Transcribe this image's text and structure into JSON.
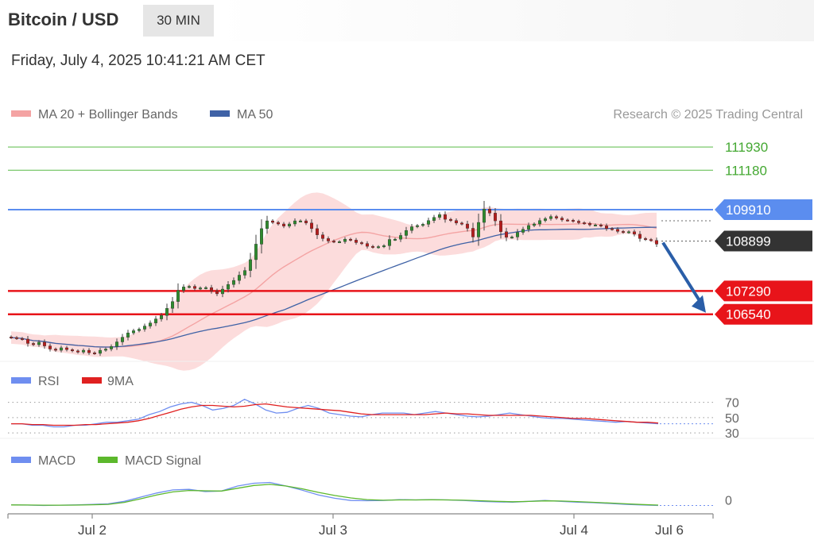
{
  "header": {
    "title": "Bitcoin / USD",
    "timeframe": "30 MIN"
  },
  "date_text": "Friday, July 4, 2025 10:41:21 AM CET",
  "credit": "Research © 2025 Trading Central",
  "colors": {
    "resistance": "#7bc86c",
    "pivot": "#5b8def",
    "support": "#e8141a",
    "price_tag": "#333333",
    "arrow": "#2a5ea8",
    "ma20": "#f4a3a3",
    "ma50": "#3f62a6",
    "band": "#fbd0d0",
    "rsi": "#6f8ef0",
    "rsi9ma": "#e02020",
    "macd": "#6f8ef0",
    "macd_signal": "#5cb82c"
  },
  "chart_data": [
    {
      "type": "candlestick",
      "legend": [
        {
          "name": "MA 20 + Bollinger Bands",
          "color": "#f4a3a3"
        },
        {
          "name": "MA 50",
          "color": "#3f62a6"
        }
      ],
      "xaxis_ticks": [
        "Jul 2",
        "Jul 3",
        "Jul 4",
        "Jul 6"
      ],
      "last_price": 108899,
      "levels": [
        {
          "value": 111930,
          "kind": "resistance"
        },
        {
          "value": 111180,
          "kind": "resistance"
        },
        {
          "value": 109910,
          "kind": "pivot"
        },
        {
          "value": 107290,
          "kind": "support"
        },
        {
          "value": 106540,
          "kind": "support"
        }
      ],
      "forecast": {
        "direction": "down",
        "target": 106540
      },
      "ylim": [
        105100,
        112700
      ],
      "close": [
        105790,
        105760,
        105740,
        105600,
        105560,
        105640,
        105520,
        105420,
        105380,
        105460,
        105400,
        105360,
        105320,
        105380,
        105300,
        105280,
        105380,
        105420,
        105500,
        105650,
        105800,
        105940,
        106010,
        106060,
        106160,
        106260,
        106390,
        106500,
        106730,
        106950,
        107310,
        107420,
        107440,
        107370,
        107390,
        107400,
        107290,
        107200,
        107350,
        107500,
        107630,
        107800,
        107950,
        108300,
        108800,
        109300,
        109550,
        109500,
        109450,
        109380,
        109450,
        109550,
        109550,
        109480,
        109300,
        109100,
        108980,
        108900,
        108880,
        108880,
        108960,
        108930,
        108850,
        108820,
        108730,
        108700,
        108720,
        108750,
        108950,
        108960,
        109080,
        109240,
        109360,
        109400,
        109440,
        109560,
        109660,
        109750,
        109600,
        109560,
        109480,
        109450,
        109310,
        109030,
        109500,
        109930,
        109800,
        109550,
        109200,
        109020,
        109030,
        109180,
        109280,
        109400,
        109450,
        109560,
        109620,
        109690,
        109640,
        109580,
        109570,
        109540,
        109490,
        109470,
        109420,
        109420,
        109390,
        109300,
        109280,
        109210,
        109180,
        109200,
        109120,
        108980,
        108950,
        108920,
        108800
      ]
    },
    {
      "type": "line",
      "legend": [
        {
          "name": "RSI",
          "color": "#6f8ef0"
        },
        {
          "name": "9MA",
          "color": "#e02020"
        }
      ],
      "levels": [
        70,
        50,
        30
      ],
      "ylim": [
        25,
        80
      ],
      "series": [
        {
          "name": "RSI",
          "values": [
            42,
            42,
            40,
            40,
            38,
            38,
            40,
            40,
            42,
            44,
            44,
            46,
            48,
            54,
            58,
            64,
            68,
            70,
            66,
            60,
            62,
            66,
            74,
            68,
            60,
            56,
            57,
            62,
            66,
            62,
            56,
            54,
            52,
            51,
            54,
            56,
            56,
            56,
            54,
            56,
            58,
            56,
            54,
            52,
            51,
            52,
            54,
            56,
            54,
            52,
            50,
            49,
            49,
            48,
            47,
            46,
            45,
            44,
            45,
            44,
            43,
            42
          ]
        },
        {
          "name": "9MA",
          "values": [
            42,
            42,
            41,
            41,
            40,
            40,
            40,
            41,
            41,
            42,
            43,
            44,
            46,
            49,
            53,
            57,
            61,
            64,
            66,
            66,
            65,
            64,
            65,
            67,
            68,
            66,
            64,
            63,
            62,
            61,
            60,
            59,
            57,
            55,
            54,
            54,
            54,
            54,
            54,
            54,
            55,
            56,
            55,
            55,
            54,
            53,
            53,
            53,
            53,
            53,
            52,
            51,
            50,
            49,
            49,
            48,
            47,
            46,
            45,
            44,
            44,
            43
          ]
        }
      ]
    },
    {
      "type": "line",
      "legend": [
        {
          "name": "MACD",
          "color": "#6f8ef0"
        },
        {
          "name": "MACD Signal",
          "color": "#5cb82c"
        }
      ],
      "levels": [
        0
      ],
      "ylim": [
        -100,
        1100
      ],
      "series": [
        {
          "name": "MACD",
          "values": [
            20,
            15,
            0,
            10,
            20,
            40,
            60,
            150,
            300,
            450,
            560,
            580,
            500,
            520,
            700,
            800,
            830,
            700,
            550,
            380,
            260,
            180,
            170,
            180,
            210,
            200,
            210,
            200,
            180,
            150,
            130,
            120,
            150,
            180,
            150,
            120,
            100,
            70,
            40,
            20,
            0
          ]
        },
        {
          "name": "MACD Signal",
          "values": [
            20,
            18,
            10,
            10,
            15,
            25,
            40,
            110,
            240,
            380,
            490,
            540,
            530,
            520,
            620,
            720,
            760,
            700,
            600,
            470,
            360,
            270,
            210,
            190,
            200,
            200,
            205,
            200,
            190,
            170,
            150,
            135,
            145,
            165,
            160,
            140,
            115,
            90,
            60,
            35,
            15
          ]
        }
      ]
    }
  ]
}
